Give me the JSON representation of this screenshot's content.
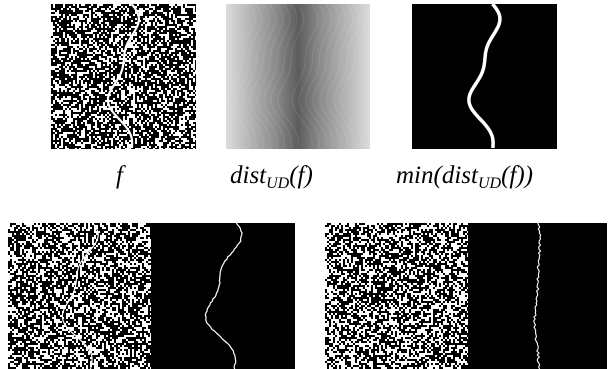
{
  "captions": {
    "f": {
      "text": "f"
    },
    "dist": {
      "pre": "dist",
      "sub": "UD",
      "post": "(f)"
    },
    "min": {
      "pre": "min(dist",
      "sub": "UD",
      "post": "(f))"
    }
  },
  "colors": {
    "background": "#ffffff",
    "black": "#000000",
    "white": "#ffffff"
  }
}
